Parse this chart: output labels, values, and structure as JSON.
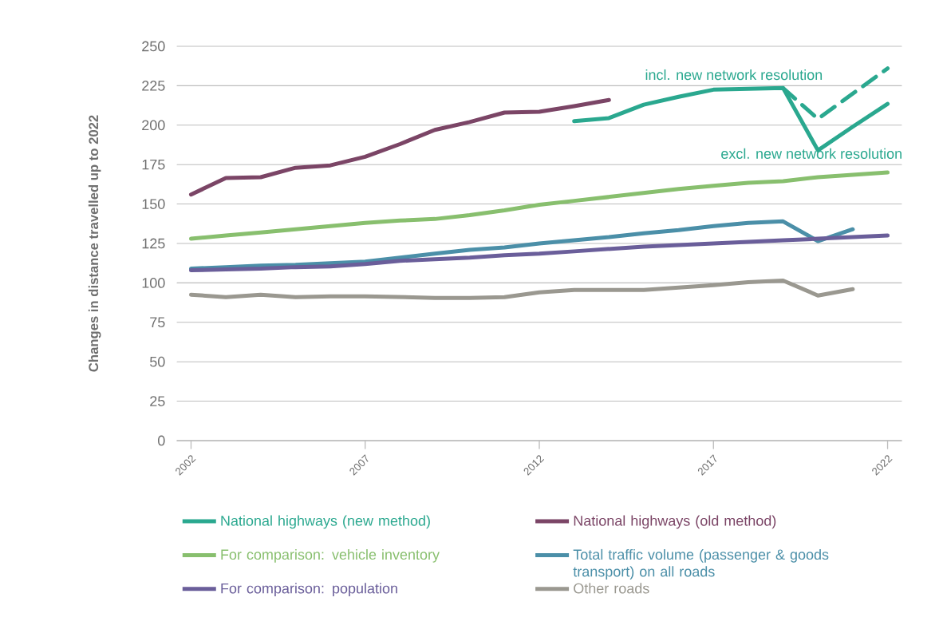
{
  "chart_data": {
    "type": "line",
    "ylabel": "Changes in distance travelled up to 2022",
    "x": [
      2002,
      2003,
      2004,
      2005,
      2006,
      2007,
      2008,
      2009,
      2010,
      2011,
      2012,
      2013,
      2014,
      2015,
      2016,
      2017,
      2018,
      2019,
      2020,
      2021,
      2022
    ],
    "series": [
      {
        "name": "National highways (new method)",
        "color": "#2aa88f",
        "values": [
          null,
          null,
          null,
          null,
          null,
          null,
          null,
          null,
          null,
          null,
          null,
          202.5,
          204.5,
          213,
          218,
          222.5,
          223,
          223.5,
          184,
          199,
          213.5
        ]
      },
      {
        "name": "National highways (old method)",
        "color": "#7b4566",
        "values": [
          156,
          166.5,
          167,
          173,
          174.5,
          180,
          188,
          197,
          202,
          208,
          208.5,
          212,
          216,
          null,
          null,
          null,
          null,
          null,
          null,
          null,
          null
        ]
      },
      {
        "name": "For comparison: vehicle inventory",
        "color": "#88bf6e",
        "values": [
          128,
          130,
          132,
          134,
          136,
          138,
          139.5,
          140.5,
          143,
          146,
          149.5,
          152,
          154.5,
          157,
          159.5,
          161.5,
          163.5,
          164.5,
          167,
          168.5,
          170
        ]
      },
      {
        "name": "Total traffic volume (passenger & goods transport) on all roads",
        "color": "#4b8fa8",
        "values": [
          109,
          110,
          111,
          111.5,
          112.5,
          113.5,
          116,
          118.5,
          121,
          122.5,
          125,
          127,
          129,
          131.5,
          133.5,
          136,
          138,
          139,
          126.5,
          134,
          null
        ]
      },
      {
        "name": "For comparison: population",
        "color": "#6a5e9a",
        "values": [
          108,
          108.5,
          109,
          110,
          110.5,
          112,
          114,
          115,
          116,
          117.5,
          118.5,
          120,
          121.5,
          123,
          124,
          125,
          126,
          127,
          128,
          129,
          130
        ]
      },
      {
        "name": "Other roads",
        "color": "#9a9890",
        "values": [
          92.5,
          91,
          92.5,
          91,
          91.5,
          91.5,
          91,
          90.5,
          90.5,
          91,
          94,
          95.5,
          95.5,
          95.5,
          97,
          98.5,
          100.5,
          101.5,
          92,
          96,
          null
        ]
      },
      {
        "color": "#2aa88f",
        "line_style": "dashed",
        "values": [
          null,
          null,
          null,
          null,
          null,
          null,
          null,
          null,
          null,
          null,
          null,
          null,
          null,
          null,
          null,
          null,
          null,
          223.5,
          204,
          220,
          236
        ]
      }
    ],
    "annotations": [
      "incl. new network resolution",
      "excl. new network resolution"
    ],
    "xlim": [
      2001.6,
      2022.4
    ],
    "ylim": [
      0,
      250
    ],
    "xticks": [
      2002,
      2007,
      2012,
      2017,
      2022
    ],
    "yticks": [
      0,
      25,
      50,
      75,
      100,
      125,
      150,
      175,
      200,
      225,
      250
    ],
    "grid": "y",
    "legend": "bottom",
    "marker": "none",
    "line_style": "solid"
  }
}
